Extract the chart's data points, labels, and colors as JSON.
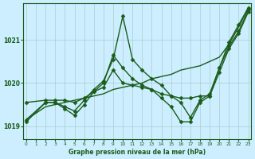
{
  "xlabel": "Graphe pression niveau de la mer (hPa)",
  "background_color": "#cceeff",
  "grid_color": "#aacccc",
  "line_color": "#1a5c1a",
  "ylim": [
    1018.7,
    1021.85
  ],
  "xlim": [
    -0.3,
    23.3
  ],
  "yticks": [
    1019,
    1020,
    1021
  ],
  "xticks": [
    0,
    1,
    2,
    3,
    4,
    5,
    6,
    7,
    8,
    9,
    10,
    11,
    12,
    13,
    14,
    15,
    16,
    17,
    18,
    19,
    20,
    21,
    22,
    23
  ],
  "lines": [
    {
      "x": [
        0,
        1,
        2,
        3,
        4,
        5,
        6,
        7,
        8,
        9,
        10,
        11,
        12,
        13,
        14,
        15,
        16,
        17,
        18,
        19,
        20,
        21,
        22,
        23
      ],
      "y": [
        1019.15,
        1019.3,
        1019.45,
        1019.5,
        1019.55,
        1019.6,
        1019.65,
        1019.7,
        1019.75,
        1019.85,
        1019.9,
        1019.95,
        1020.0,
        1020.1,
        1020.15,
        1020.2,
        1020.3,
        1020.35,
        1020.4,
        1020.5,
        1020.6,
        1020.9,
        1021.3,
        1021.75
      ],
      "marker": null,
      "markersize": 0,
      "linewidth": 1.0
    },
    {
      "x": [
        0,
        2,
        3,
        4,
        5,
        6,
        7,
        8,
        9,
        10,
        11,
        12,
        13,
        14,
        15,
        16,
        17,
        18,
        19,
        20,
        21,
        22,
        23
      ],
      "y": [
        1019.15,
        1019.55,
        1019.55,
        1019.45,
        1019.35,
        1019.6,
        1019.85,
        1020.05,
        1020.55,
        1021.55,
        1020.55,
        1020.3,
        1020.1,
        1019.95,
        1019.7,
        1019.55,
        1019.2,
        1019.6,
        1019.75,
        1020.35,
        1020.95,
        1021.35,
        1021.75
      ],
      "marker": "D",
      "markersize": 2.5,
      "linewidth": 1.0
    },
    {
      "x": [
        0,
        2,
        3,
        4,
        5,
        6,
        7,
        8,
        9,
        10,
        11,
        12,
        13,
        14,
        15,
        16,
        17,
        18,
        19,
        20,
        21,
        22,
        23
      ],
      "y": [
        1019.1,
        1019.55,
        1019.55,
        1019.4,
        1019.25,
        1019.5,
        1019.8,
        1020.0,
        1020.65,
        1020.35,
        1020.1,
        1019.95,
        1019.85,
        1019.65,
        1019.45,
        1019.1,
        1019.1,
        1019.55,
        1019.7,
        1020.25,
        1020.8,
        1021.15,
        1021.65
      ],
      "marker": "D",
      "markersize": 2.5,
      "linewidth": 1.0
    },
    {
      "x": [
        0,
        2,
        3,
        4,
        5,
        6,
        7,
        8,
        9,
        10,
        11,
        12,
        13,
        14,
        15,
        16,
        17,
        18,
        19,
        20,
        21,
        22,
        23
      ],
      "y": [
        1019.55,
        1019.6,
        1019.6,
        1019.6,
        1019.55,
        1019.65,
        1019.8,
        1019.9,
        1020.3,
        1020.0,
        1019.95,
        1019.9,
        1019.85,
        1019.75,
        1019.7,
        1019.65,
        1019.65,
        1019.7,
        1019.7,
        1020.35,
        1020.85,
        1021.2,
        1021.7
      ],
      "marker": "D",
      "markersize": 2.5,
      "linewidth": 1.0
    }
  ]
}
